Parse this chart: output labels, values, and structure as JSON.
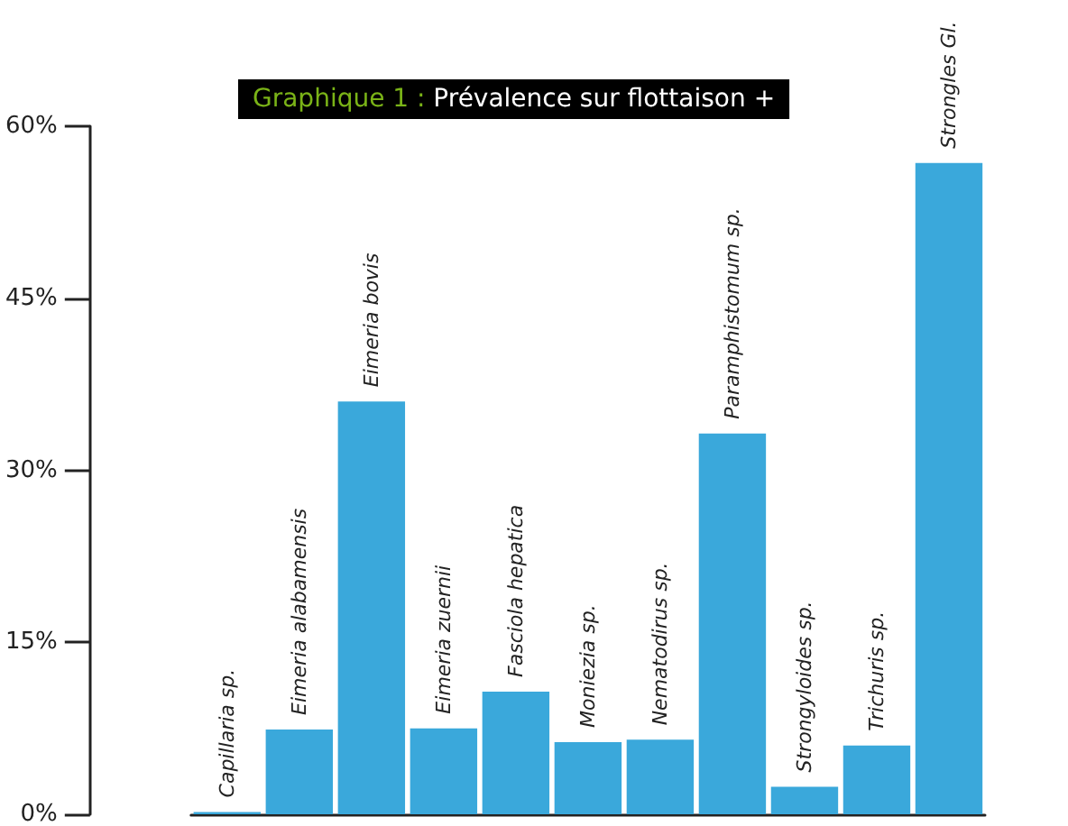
{
  "chart_data": {
    "type": "bar",
    "title": "Graphique 1 : Prévalence sur flottaison +",
    "categories": [
      "Capillaria sp.",
      "Eimeria alabamensis",
      "Eimeria bovis",
      "Eimeria zuernii",
      "Fasciola hepatica",
      "Moniezia sp.",
      "Nematodirus sp.",
      "Paramphistomum sp.",
      "Strongyloides sp.",
      "Trichuris sp.",
      "Strongles Gl."
    ],
    "values": [
      0.2,
      7.4,
      36.0,
      7.5,
      10.7,
      6.3,
      6.5,
      33.2,
      2.4,
      6.0,
      56.8
    ],
    "color": "#3aa8db",
    "ylim": [
      0,
      60
    ],
    "yticks": [
      {
        "value": 0,
        "label": "0%"
      },
      {
        "value": 15,
        "label": "15%"
      },
      {
        "value": 30,
        "label": "30%"
      },
      {
        "value": 45,
        "label": "45%"
      },
      {
        "value": 60,
        "label": "60%"
      }
    ],
    "grid": false
  }
}
